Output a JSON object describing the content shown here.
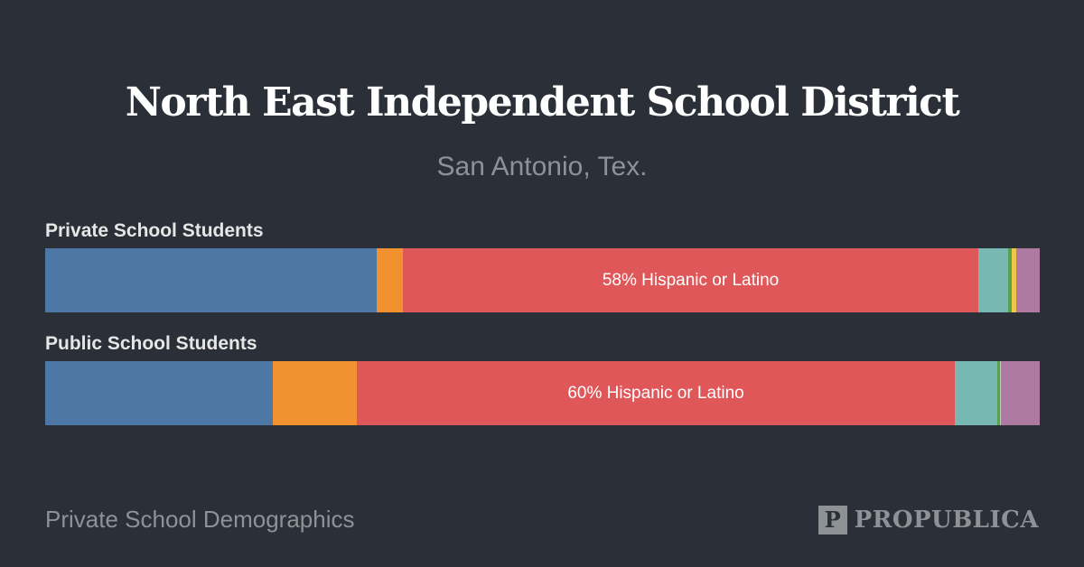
{
  "chart_data": {
    "type": "bar",
    "orientation": "horizontal-stacked",
    "title": "North East Independent School District",
    "subtitle": "San Antonio, Tex.",
    "unit": "percent",
    "series_colors": [
      "#4d78a6",
      "#f29130",
      "#e0575a",
      "#78b8b2",
      "#58a14e",
      "#eec949",
      "#ae7aa1"
    ],
    "rows": [
      {
        "label": "Private School Students",
        "values": [
          33.3,
          2.7,
          57.8,
          3.0,
          0.4,
          0.45,
          2.35
        ],
        "annotation": "58% Hispanic or Latino",
        "annotated_index": 2
      },
      {
        "label": "Public School Students",
        "values": [
          22.9,
          8.4,
          60.2,
          4.2,
          0.3,
          0.1,
          3.9
        ],
        "annotation": "60% Hispanic or Latino",
        "annotated_index": 2
      }
    ]
  },
  "footer": {
    "text": "Private School Demographics",
    "logo_mark": "P",
    "logo_text": "PROPUBLICA"
  }
}
